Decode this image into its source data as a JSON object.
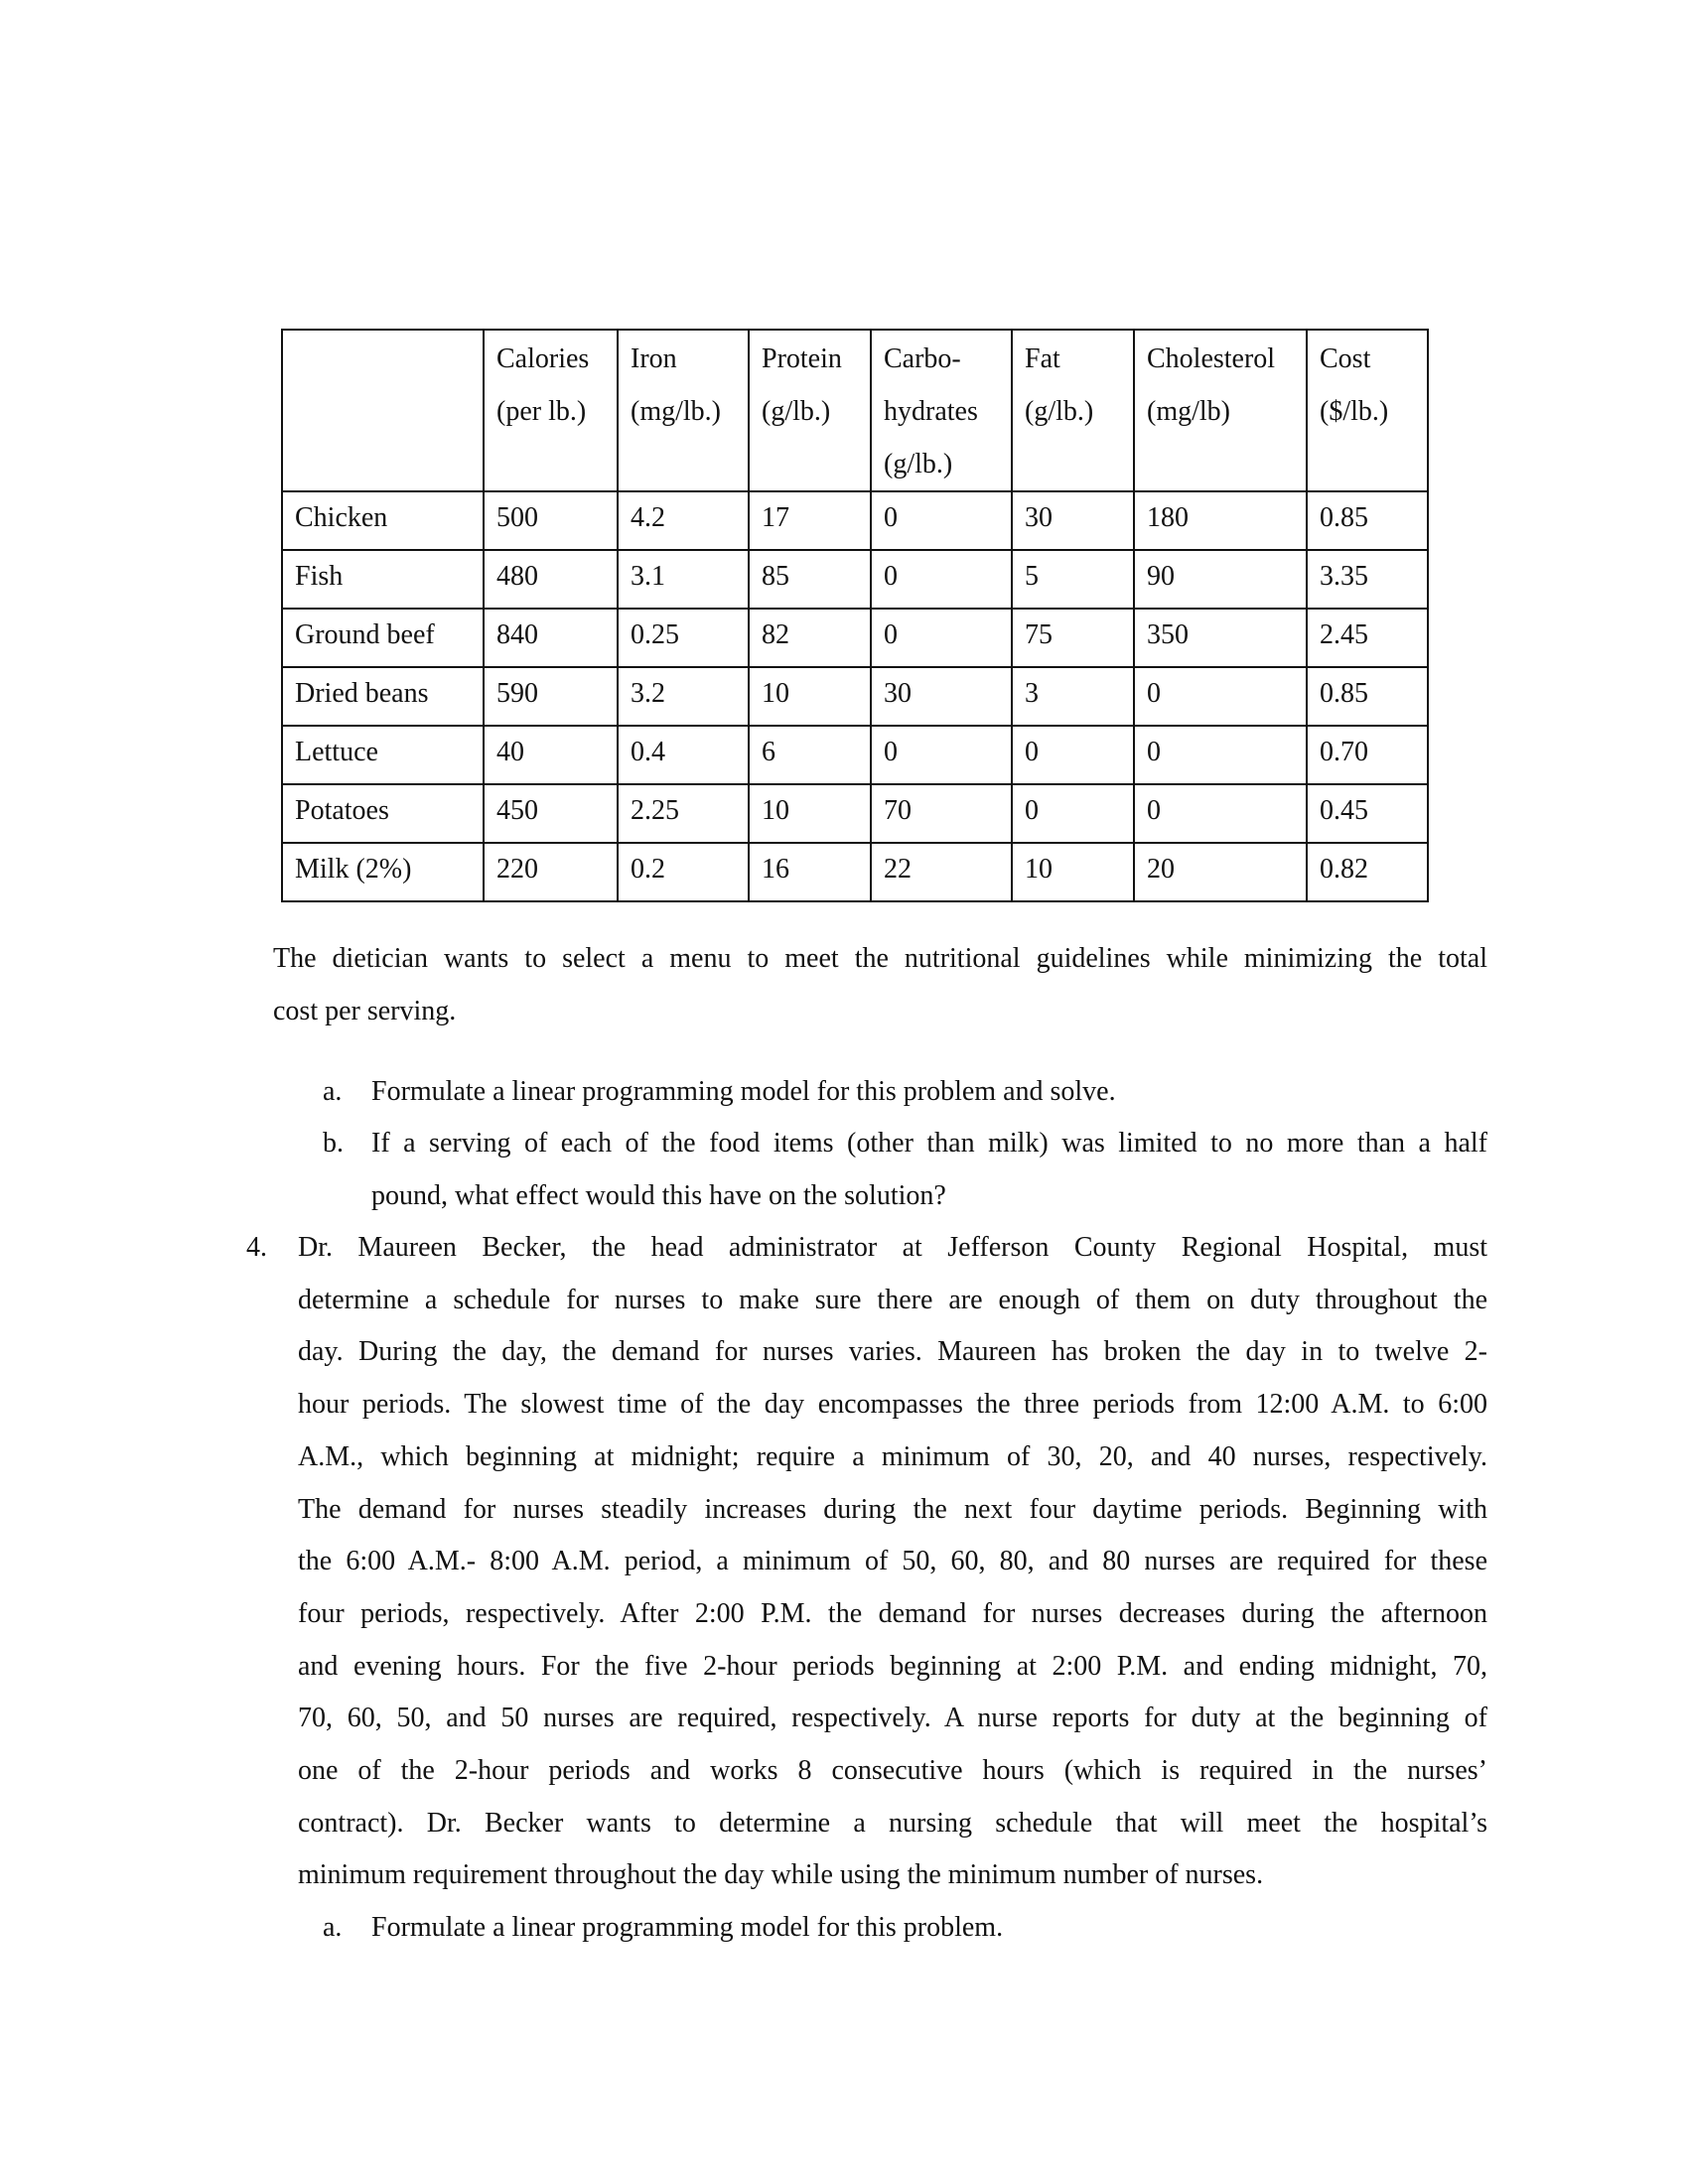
{
  "table": {
    "headers": [
      "",
      [
        "Calories",
        "(per lb.)"
      ],
      [
        "Iron",
        "(mg/lb.)"
      ],
      [
        "Protein",
        "(g/lb.)"
      ],
      [
        "Carbo-",
        "hydrates",
        "(g/lb.)"
      ],
      [
        "Fat",
        "(g/lb.)"
      ],
      [
        "Cholesterol",
        "(mg/lb)"
      ],
      [
        "Cost",
        "($/lb.)"
      ]
    ],
    "rows": [
      [
        "Chicken",
        "500",
        "4.2",
        "17",
        "0",
        "30",
        "180",
        "0.85"
      ],
      [
        "Fish",
        "480",
        "3.1",
        "85",
        "0",
        "5",
        "90",
        "3.35"
      ],
      [
        "Ground beef",
        "840",
        "0.25",
        "82",
        "0",
        "75",
        "350",
        "2.45"
      ],
      [
        "Dried beans",
        "590",
        "3.2",
        "10",
        "30",
        "3",
        "0",
        "0.85"
      ],
      [
        "Lettuce",
        "40",
        "0.4",
        "6",
        "0",
        "0",
        "0",
        "0.70"
      ],
      [
        "Potatoes",
        "450",
        "2.25",
        "10",
        "70",
        "0",
        "0",
        "0.45"
      ],
      [
        "Milk (2%)",
        "220",
        "0.2",
        "16",
        "22",
        "10",
        "20",
        "0.82"
      ]
    ]
  },
  "intro": [
    "The dietician wants to select a menu to meet the nutritional guidelines while minimizing the total",
    "cost per serving."
  ],
  "q3": {
    "a_marker": "a.",
    "a_text": "Formulate a linear programming model for this problem and solve.",
    "b_marker": "b.",
    "b_lines": [
      "If a serving of each of the food items (other than milk) was limited to no more than a half",
      "pound, what effect would this have on the solution?"
    ]
  },
  "q4": {
    "number": "4.",
    "lines": [
      "Dr. Maureen Becker, the head administrator at Jefferson County Regional Hospital, must",
      "determine a schedule for nurses to make sure there are enough of them on duty throughout the",
      "day. During the day, the demand for nurses varies. Maureen has broken the day in to twelve 2-",
      "hour periods. The slowest time of the day encompasses the three periods from 12:00 A.M. to 6:00",
      "A.M., which beginning at midnight; require a minimum of 30, 20, and 40 nurses, respectively.",
      "The demand for nurses steadily increases during the next four daytime periods. Beginning with",
      "the 6:00 A.M.- 8:00 A.M. period, a minimum of 50, 60, 80, and 80 nurses are required for these",
      "four periods, respectively. After 2:00 P.M. the demand for nurses decreases during the afternoon",
      "and evening hours. For the five 2-hour periods beginning at 2:00 P.M. and ending midnight, 70,",
      "70, 60, 50, and 50 nurses are required, respectively. A nurse reports for duty at the beginning of",
      "one of the 2-hour periods and works 8 consecutive hours (which is required in the nurses’",
      "contract).  Dr. Becker wants to determine a nursing schedule that will meet the hospital’s",
      "minimum requirement throughout the day while using the minimum number of nurses."
    ],
    "a_marker": "a.",
    "a_text": "Formulate a linear programming model for this problem."
  }
}
